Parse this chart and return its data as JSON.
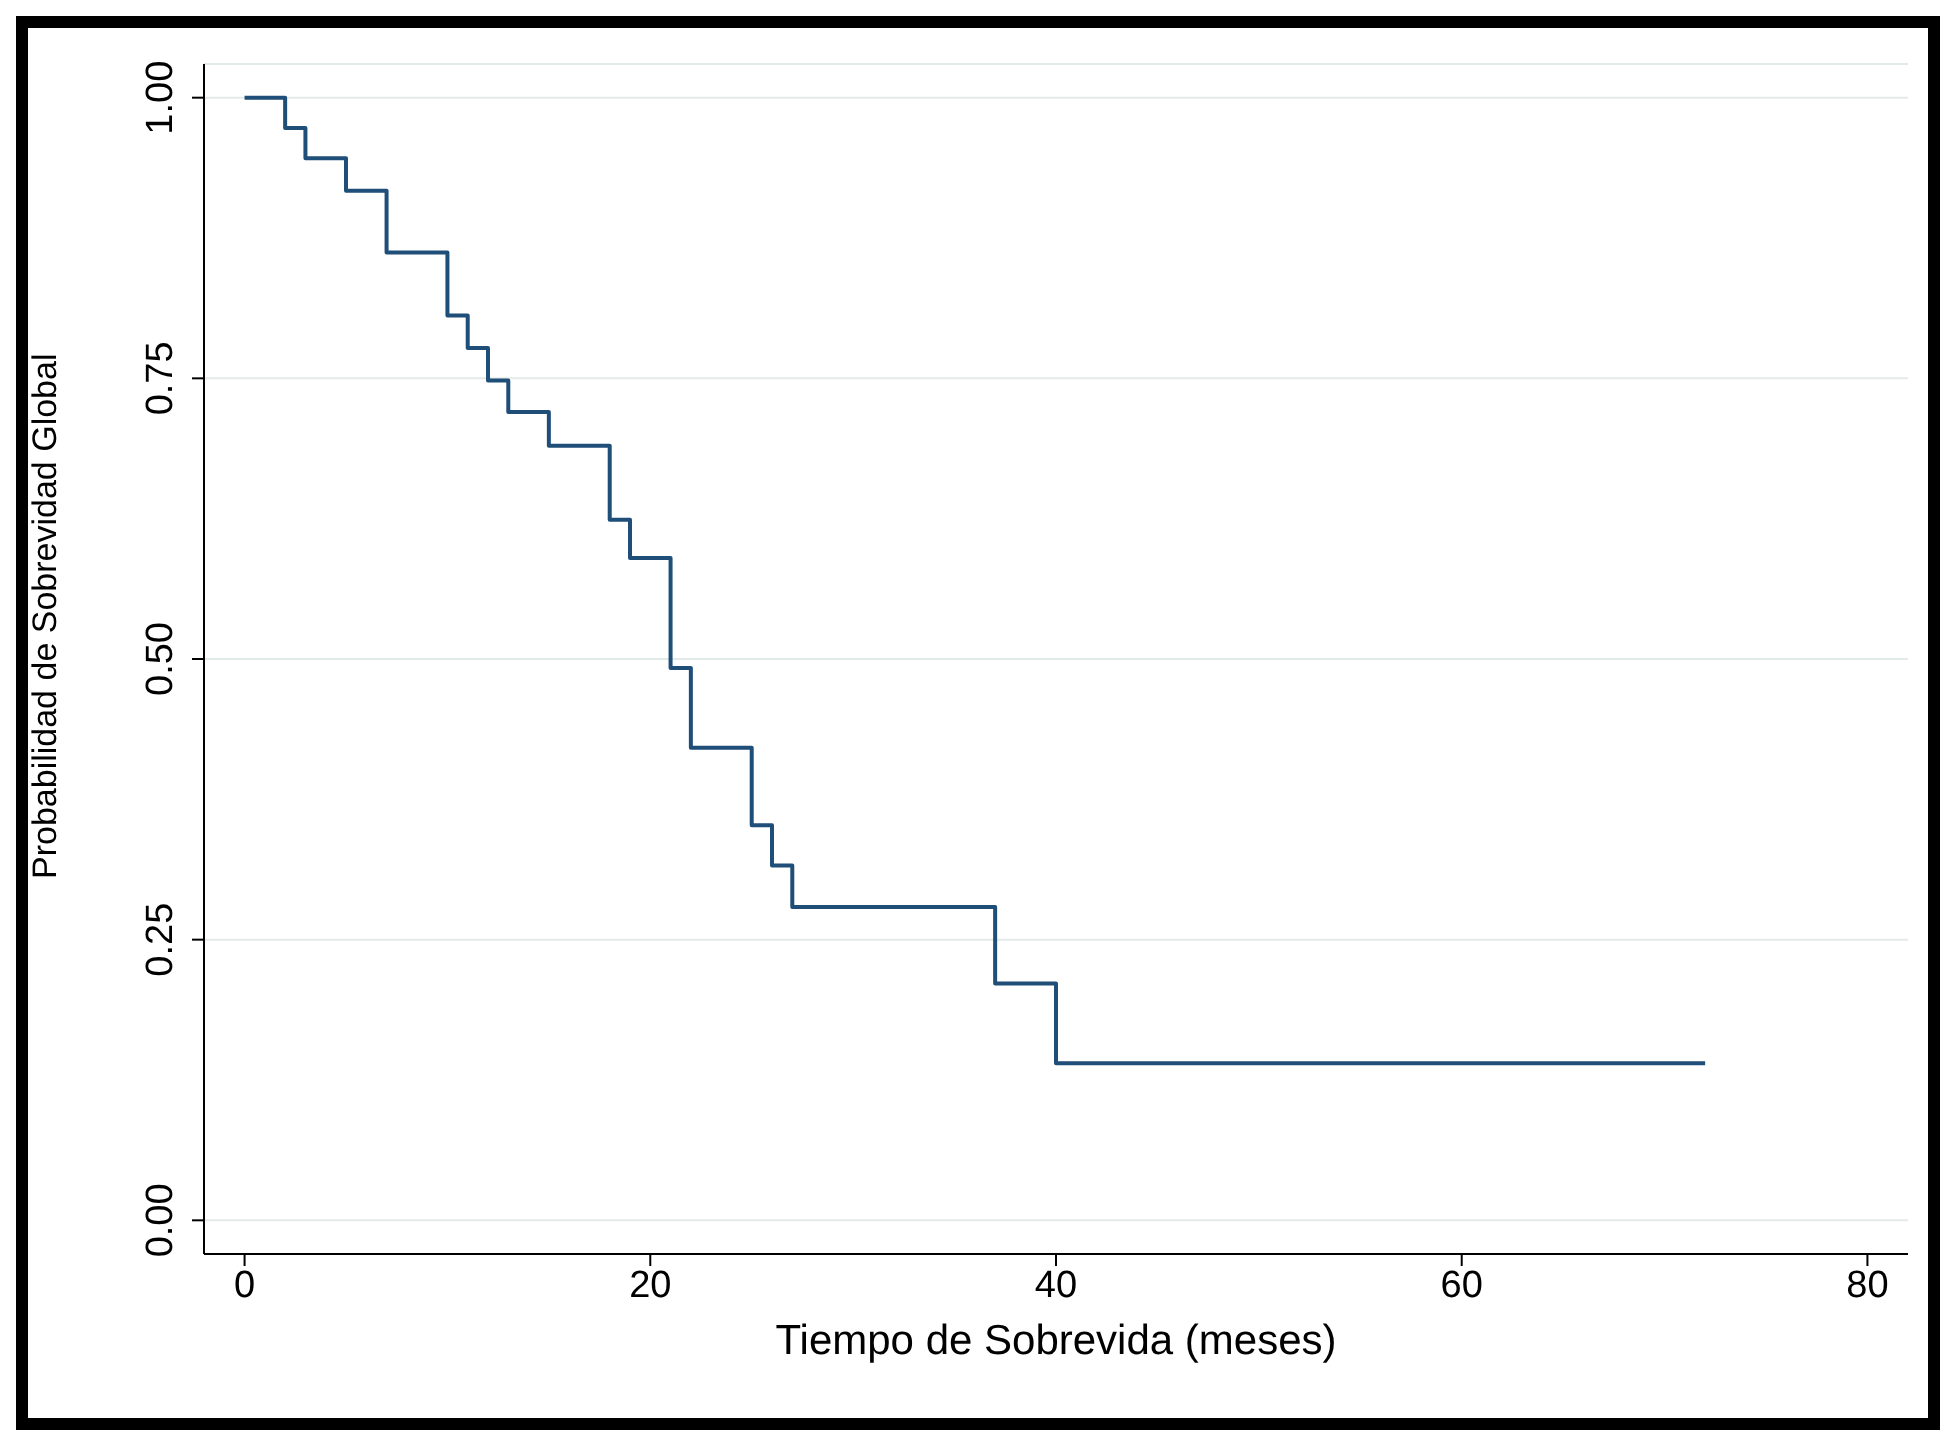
{
  "chart_data": {
    "type": "step",
    "xlabel": "Tiempo de Sobrevida (meses)",
    "ylabel": "Probabilidad de Sobrevidad Global",
    "x": [
      0,
      2,
      3,
      5,
      7,
      10,
      11,
      12,
      13,
      15,
      18,
      19,
      21,
      22,
      25,
      26,
      27,
      37,
      40,
      72
    ],
    "series": [
      {
        "color": "#1f4e79",
        "values": [
          1.0,
          0.973,
          0.946,
          0.917,
          0.862,
          0.806,
          0.777,
          0.748,
          0.72,
          0.69,
          0.624,
          0.59,
          0.492,
          0.421,
          0.352,
          0.316,
          0.279,
          0.211,
          0.14,
          0.14
        ]
      }
    ],
    "xlim": [
      -2,
      82
    ],
    "xticks": [
      0,
      20,
      40,
      60,
      80
    ],
    "ylim": [
      -0.03,
      1.03
    ],
    "yticks": [
      {
        "value": 0,
        "label": "0.00"
      },
      {
        "value": 0.25,
        "label": "0.25"
      },
      {
        "value": 0.5,
        "label": "0.50"
      },
      {
        "value": 0.75,
        "label": "0.75"
      },
      {
        "value": 1,
        "label": "1.00"
      }
    ],
    "grid": "y",
    "legend": false,
    "marker": "none",
    "line_style": "solid"
  }
}
